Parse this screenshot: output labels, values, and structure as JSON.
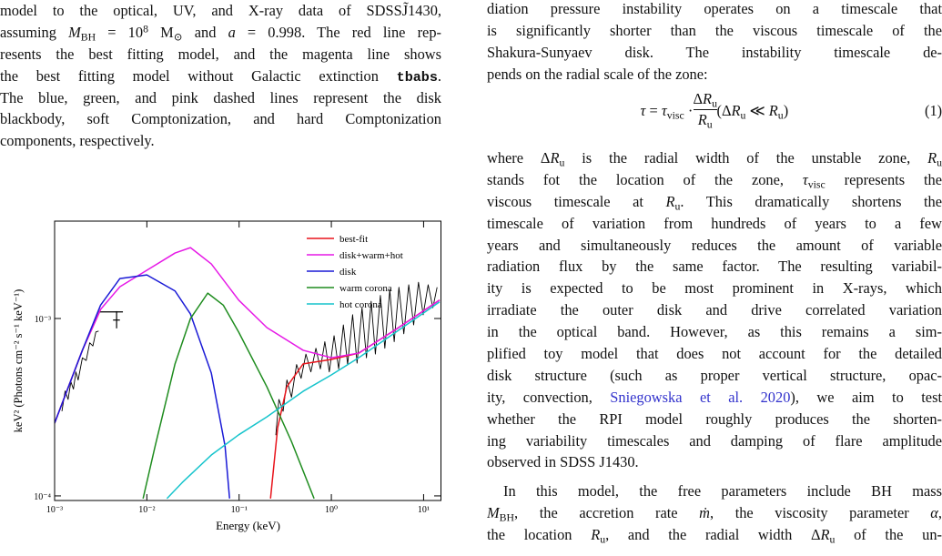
{
  "left": {
    "paragraphs": [
      {
        "lines": [
          "model to the optical, UV, and X-ray data of SDSSJ̃1430,",
          [
            {
              "text": "assuming "
            },
            {
              "math": "M"
            },
            {
              "sub": "BH"
            },
            {
              "text": " = 10"
            },
            {
              "sup": "8"
            },
            {
              "text": " M"
            },
            {
              "sub": "⊙"
            },
            {
              "text": " and "
            },
            {
              "math": "a"
            },
            {
              "text": " = 0.998. The red line rep-"
            }
          ],
          "resents the best fitting model, and the magenta line shows",
          [
            {
              "text": "the best fitting model without Galactic extinction "
            },
            {
              "mono": "tbabs"
            },
            {
              "text": "."
            }
          ],
          "The blue, green, and pink dashed lines represent the disk",
          "blackbody, soft Comptonization, and hard Comptonization",
          "components, respectively."
        ]
      }
    ]
  },
  "right": {
    "paragraphs": [
      {
        "lines": [
          "diation pressure instability operates on a timescale that",
          "is significantly shorter than the viscous timescale of the",
          "Shakura-Sunyaev disk.  The instability timescale de-",
          "pends on the radial scale of the zone:"
        ]
      },
      {
        "lines": [
          [
            {
              "text": "where Δ"
            },
            {
              "math": "R"
            },
            {
              "sub": "u"
            },
            {
              "text": " is the radial width of the unstable zone, "
            },
            {
              "math": "R"
            },
            {
              "sub": "u"
            }
          ],
          [
            {
              "text": "stands fot the location of the zone, "
            },
            {
              "math": "τ"
            },
            {
              "sub": "visc"
            },
            {
              "text": " represents the"
            }
          ],
          [
            {
              "text": "viscous timescale at "
            },
            {
              "math": "R"
            },
            {
              "sub": "u"
            },
            {
              "text": ". This dramatically shortens the"
            }
          ],
          "timescale of variation from hundreds of years to a few",
          "years and simultaneously reduces the amount of variable",
          "radiation flux by the same factor. The resulting variabil-",
          "ity is expected to be most prominent in X-rays, which",
          "irradiate the outer disk and drive correlated variation",
          "in the optical band. However, as this remains a sim-",
          "plified toy model that does not account for the detailed",
          "disk structure (such as proper vertical structure, opac-",
          [
            {
              "text": "ity, convection, "
            },
            {
              "link": "Sniegowska et al. 2020"
            },
            {
              "text": "), we aim to test"
            }
          ],
          "whether the RPI model roughly produces the shorten-",
          "ing variability timescales and damping of flare amplitude",
          "observed in SDSS J1430."
        ]
      },
      {
        "lines": [
          "In this model, the free parameters include BH mass",
          [
            {
              "math": "M"
            },
            {
              "sub": "BH"
            },
            {
              "text": ", the accretion rate "
            },
            {
              "math": "ṁ"
            },
            {
              "text": ", the viscosity parameter "
            },
            {
              "math": "α"
            },
            {
              "text": ","
            }
          ],
          [
            {
              "text": "the location "
            },
            {
              "math": "R"
            },
            {
              "sub": "u"
            },
            {
              "text": ", and the radial width Δ"
            },
            {
              "math": "R"
            },
            {
              "sub": "u"
            },
            {
              "text": " of the un-"
            }
          ]
        ]
      }
    ],
    "equation": {
      "lhs": [
        {
          "math": "τ"
        },
        {
          "text": " = "
        },
        {
          "math": "τ"
        },
        {
          "sub": "visc"
        },
        {
          "text": " · "
        }
      ],
      "numerator": [
        {
          "text": "Δ"
        },
        {
          "math": "R"
        },
        {
          "sub": "u"
        }
      ],
      "denominator": [
        {
          "math": "R"
        },
        {
          "sub": "u"
        }
      ],
      "rhs": [
        {
          "text": " (Δ"
        },
        {
          "math": "R"
        },
        {
          "sub": "u"
        },
        {
          "text": " ≪ "
        },
        {
          "math": "R"
        },
        {
          "sub": "u"
        },
        {
          "text": ")"
        }
      ],
      "number": "(1)"
    }
  },
  "figure": {
    "type": "line",
    "xlabel": "Energy (keV)",
    "ylabel": "keV² (Photons cm⁻² s⁻¹ keV⁻¹)",
    "xscale": "log",
    "yscale": "log",
    "xlim": [
      0.001,
      15.6
    ],
    "ylim": [
      9.42e-05,
      0.00354
    ],
    "xticks": [
      {
        "value": 0.001,
        "label": "10⁻³"
      },
      {
        "value": 0.01,
        "label": "10⁻²"
      },
      {
        "value": 0.1,
        "label": "10⁻¹"
      },
      {
        "value": 1,
        "label": "10⁰"
      },
      {
        "value": 10,
        "label": "10¹"
      }
    ],
    "yticks": [
      {
        "value": 0.0001,
        "label": "10⁻⁴"
      },
      {
        "value": 0.001,
        "label": "10⁻³"
      }
    ],
    "legend": "upper right",
    "series": [
      {
        "name": "best-fit",
        "color": "#e8141c",
        "x": [
          0.001,
          0.002,
          0.00315,
          0.1,
          0.219,
          0.262,
          0.329,
          0.495,
          1.0,
          1.98,
          5.0,
          14.9
        ],
        "values": [
          0.000257,
          0.000662,
          0.001125,
          null,
          9.66e-05,
          0.000243,
          0.000412,
          0.000555,
          0.000588,
          0.000638,
          0.000868,
          0.00127
        ]
      },
      {
        "name": "disk+warm+hot",
        "color": "#e619e6",
        "x": [
          0.001,
          0.002,
          0.00315,
          0.0051,
          0.01,
          0.0202,
          0.0297,
          0.05,
          0.099,
          0.2,
          0.495,
          1.0,
          1.98,
          5.0,
          14.9
        ],
        "values": [
          0.000257,
          0.000662,
          0.001125,
          0.00151,
          0.00187,
          0.00234,
          0.00251,
          0.00203,
          0.00127,
          0.000889,
          0.000662,
          0.000601,
          0.000638,
          0.000868,
          0.00127
        ]
      },
      {
        "name": "disk",
        "color": "#1a1ad6",
        "x": [
          0.001,
          0.002,
          0.00315,
          0.0051,
          0.01,
          0.0202,
          0.0297,
          0.05,
          0.0704,
          0.0788
        ],
        "values": [
          0.000257,
          0.000662,
          0.00119,
          0.00168,
          0.00176,
          0.00143,
          0.00106,
          0.000492,
          0.000191,
          9.66e-05
        ]
      },
      {
        "name": "warm corona",
        "color": "#1e8c1e",
        "x": [
          0.0091,
          0.0123,
          0.0202,
          0.0297,
          0.0457,
          0.0673,
          0.099,
          0.2,
          0.369,
          0.65
        ],
        "values": [
          9.66e-05,
          0.000191,
          0.000555,
          0.001,
          0.00139,
          0.00119,
          0.000838,
          0.000412,
          0.000203,
          9.66e-05
        ]
      },
      {
        "name": "hot corona",
        "color": "#17c4cc",
        "x": [
          0.0165,
          0.0242,
          0.05,
          0.099,
          0.2,
          0.495,
          1.0,
          1.98,
          5.0,
          14.9
        ],
        "values": [
          9.66e-05,
          0.000119,
          0.00017,
          0.000221,
          0.000279,
          0.000389,
          0.000481,
          0.000601,
          0.000838,
          0.00124
        ]
      }
    ],
    "observed_optical": {
      "color": "#000000",
      "x": [
        0.0012,
        0.0013,
        0.0014,
        0.0015,
        0.0016,
        0.0017,
        0.0018,
        0.002,
        0.0022,
        0.0024,
        0.0026,
        0.0028,
        0.003
      ],
      "values": [
        0.0003,
        0.00039,
        0.00035,
        0.00044,
        0.0004,
        0.0005,
        0.00045,
        0.0006,
        0.00058,
        0.00073,
        0.0007,
        0.00084,
        0.00085
      ]
    },
    "observed_xray": {
      "color": "#000000",
      "x": [
        0.25,
        0.27,
        0.3,
        0.33,
        0.37,
        0.42,
        0.47,
        0.53,
        0.6,
        0.68,
        0.76,
        0.85,
        0.95,
        1.07,
        1.2,
        1.35,
        1.5,
        1.7,
        1.9,
        2.15,
        2.4,
        2.7,
        3.0,
        3.4,
        3.8,
        4.3,
        4.8,
        5.4,
        6.1,
        6.9,
        7.8,
        8.8,
        9.9,
        11.2,
        12.6,
        14.0
      ],
      "values": [
        0.00022,
        0.00035,
        0.0003,
        0.00045,
        0.00036,
        0.00055,
        0.00046,
        0.00063,
        0.0005,
        0.00068,
        0.00052,
        0.00074,
        0.0005,
        0.0008,
        0.00052,
        0.00092,
        0.00055,
        0.00105,
        0.00056,
        0.00115,
        0.0006,
        0.00125,
        0.00063,
        0.00135,
        0.00068,
        0.00145,
        0.00074,
        0.0015,
        0.00082,
        0.00155,
        0.00092,
        0.0016,
        0.00105,
        0.00155,
        0.00115,
        0.0015
      ]
    },
    "uv_bar": {
      "x_range": [
        0.003,
        0.0055
      ],
      "value": 0.00109,
      "color": "#000000"
    },
    "uv_cross": {
      "x": 0.0047,
      "value": 0.00098,
      "x_range": [
        0.0043,
        0.0051
      ],
      "y_range": [
        0.00088,
        0.0011
      ],
      "color": "#000000"
    }
  }
}
